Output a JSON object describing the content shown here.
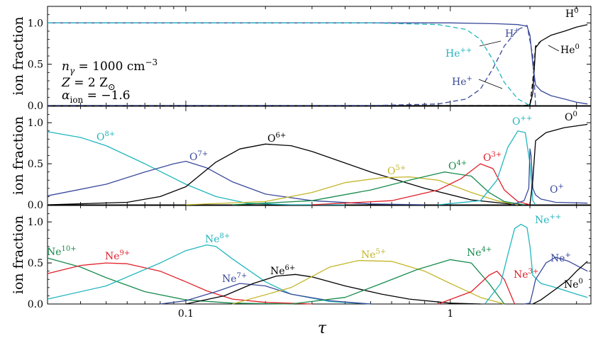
{
  "x_axis_label": "τ",
  "x_tick_labels": [
    "0.1",
    "1"
  ],
  "colors": {
    "navy": "#3a4a9a",
    "cyan": "#22b6bf",
    "black": "#000000",
    "green": "#168a4c",
    "red": "#e0202a",
    "olive": "#c4b62a"
  },
  "annotations": {
    "n_gamma": "n",
    "n_gamma_sub": "γ",
    "n_gamma_val": " = 1000 cm",
    "n_gamma_exp": "−3",
    "Z_lhs": "Z",
    "Z_rhs": " = 2 Z",
    "Z_sub": "⊙",
    "alpha_lhs": "α",
    "alpha_sub": "ion",
    "alpha_rhs": " = −1.6"
  },
  "chart_data": [
    {
      "type": "line",
      "panel": "hydrogen-helium",
      "ylabel": "ion fraction",
      "ylim": [
        0,
        1.2
      ],
      "yticks": [
        0,
        0.5,
        1
      ],
      "ytick_labels": [
        "0.0",
        "0.5",
        "1.0"
      ],
      "xscale": "log",
      "xlim": [
        0.03,
        3.4
      ],
      "series": [
        {
          "name": "H",
          "charge": "0",
          "color": "#000000",
          "dash": "",
          "x": [
            0.03,
            1.9,
            2.0,
            2.05,
            2.1,
            2.2,
            2.4,
            2.7,
            3.0,
            3.3
          ],
          "y": [
            0,
            0,
            0.01,
            0.15,
            0.7,
            0.78,
            0.85,
            0.9,
            0.95,
            0.98
          ]
        },
        {
          "name": "H",
          "charge": "+",
          "color": "#3a4a9a",
          "dash": "",
          "x": [
            0.03,
            1.0,
            1.5,
            1.8,
            1.95,
            2.0,
            2.05,
            2.1,
            2.2,
            2.4,
            2.7,
            3.0,
            3.3
          ],
          "y": [
            1,
            1,
            0.99,
            0.98,
            0.96,
            0.85,
            0.5,
            0.25,
            0.18,
            0.12,
            0.08,
            0.04,
            0.02
          ]
        },
        {
          "name": "He",
          "charge": "0",
          "color": "#000000",
          "dash": "7 4",
          "x": [
            0.03,
            2.0,
            2.05,
            2.1,
            2.2
          ],
          "y": [
            0,
            0,
            0.3,
            0.72,
            0.78
          ]
        },
        {
          "name": "He",
          "charge": "++",
          "color": "#22b6bf",
          "dash": "7 4",
          "x": [
            0.03,
            0.5,
            0.9,
            1.15,
            1.3,
            1.45,
            1.6,
            1.8,
            1.95,
            2.0
          ],
          "y": [
            1,
            1,
            0.98,
            0.92,
            0.8,
            0.55,
            0.28,
            0.08,
            0.02,
            0
          ]
        },
        {
          "name": "He",
          "charge": "+",
          "color": "#3a4a9a",
          "dash": "7 4",
          "x": [
            0.03,
            0.5,
            0.9,
            1.15,
            1.3,
            1.45,
            1.6,
            1.8,
            1.95,
            2.05,
            2.1
          ],
          "y": [
            0,
            0,
            0.02,
            0.08,
            0.2,
            0.45,
            0.72,
            0.92,
            0.97,
            0.6,
            0
          ]
        }
      ]
    },
    {
      "type": "line",
      "panel": "oxygen",
      "ylabel": "ion fraction",
      "ylim": [
        0,
        1.2
      ],
      "yticks": [
        0,
        0.5,
        1
      ],
      "ytick_labels": [
        "0.0",
        "0.5",
        "1.0"
      ],
      "xscale": "log",
      "xlim": [
        0.03,
        3.4
      ],
      "series": [
        {
          "name": "O",
          "charge": "8+",
          "color": "#22b6bf",
          "x": [
            0.03,
            0.04,
            0.05,
            0.07,
            0.1,
            0.13,
            0.17,
            0.25,
            0.4
          ],
          "y": [
            0.89,
            0.82,
            0.72,
            0.5,
            0.25,
            0.1,
            0.02,
            0,
            0
          ]
        },
        {
          "name": "O",
          "charge": "7+",
          "color": "#3a4a9a",
          "x": [
            0.03,
            0.05,
            0.07,
            0.09,
            0.1,
            0.12,
            0.15,
            0.2,
            0.3,
            0.5,
            0.8
          ],
          "y": [
            0.11,
            0.25,
            0.4,
            0.5,
            0.53,
            0.45,
            0.28,
            0.13,
            0.05,
            0.01,
            0
          ]
        },
        {
          "name": "O",
          "charge": "6+",
          "color": "#000000",
          "x": [
            0.03,
            0.06,
            0.08,
            0.1,
            0.13,
            0.16,
            0.2,
            0.25,
            0.3,
            0.5,
            0.8,
            1.2,
            1.8
          ],
          "y": [
            0,
            0.03,
            0.1,
            0.22,
            0.52,
            0.68,
            0.74,
            0.72,
            0.65,
            0.4,
            0.2,
            0.06,
            0
          ]
        },
        {
          "name": "O",
          "charge": "5+",
          "color": "#c4b62a",
          "x": [
            0.1,
            0.2,
            0.3,
            0.4,
            0.55,
            0.7,
            0.9,
            1.2,
            1.5,
            1.8
          ],
          "y": [
            0,
            0.04,
            0.15,
            0.27,
            0.33,
            0.34,
            0.3,
            0.15,
            0.05,
            0
          ]
        },
        {
          "name": "O",
          "charge": "4+",
          "color": "#168a4c",
          "x": [
            0.15,
            0.3,
            0.5,
            0.7,
            0.95,
            1.2,
            1.4,
            1.6,
            1.9
          ],
          "y": [
            0,
            0.05,
            0.18,
            0.3,
            0.4,
            0.35,
            0.15,
            0.04,
            0
          ]
        },
        {
          "name": "O",
          "charge": "3+",
          "color": "#e0202a",
          "x": [
            0.3,
            0.6,
            0.9,
            1.1,
            1.3,
            1.45,
            1.6,
            1.8,
            2.0
          ],
          "y": [
            0,
            0.05,
            0.18,
            0.32,
            0.5,
            0.44,
            0.18,
            0.04,
            0
          ]
        },
        {
          "name": "O",
          "charge": "++",
          "color": "#22b6bf",
          "x": [
            0.9,
            1.3,
            1.5,
            1.65,
            1.8,
            1.92,
            2.0,
            2.05,
            2.1
          ],
          "y": [
            0,
            0.05,
            0.3,
            0.7,
            0.9,
            0.88,
            0.5,
            0.05,
            0
          ]
        },
        {
          "name": "O",
          "charge": "+",
          "color": "#3a4a9a",
          "x": [
            1.7,
            1.9,
            1.98,
            2.0,
            2.02,
            2.05,
            2.1,
            2.2,
            2.5,
            3.3
          ],
          "y": [
            0,
            0.05,
            0.2,
            0.68,
            0.6,
            0.2,
            0.12,
            0.07,
            0.03,
            0.02
          ]
        },
        {
          "name": "O",
          "charge": "0",
          "color": "#000000",
          "x": [
            2.0,
            2.05,
            2.1,
            2.3,
            2.7,
            3.3
          ],
          "y": [
            0,
            0.3,
            0.78,
            0.88,
            0.94,
            0.98
          ]
        }
      ]
    },
    {
      "type": "line",
      "panel": "neon",
      "ylabel": "ion fraction",
      "ylim": [
        0,
        1.2
      ],
      "yticks": [
        0,
        0.5,
        1
      ],
      "ytick_labels": [
        "0.0",
        "0.5",
        "1.0"
      ],
      "xscale": "log",
      "xlim": [
        0.03,
        3.4
      ],
      "series": [
        {
          "name": "Ne",
          "charge": "10+",
          "color": "#168a4c",
          "x": [
            0.03,
            0.04,
            0.05,
            0.07,
            0.1,
            0.15,
            0.25
          ],
          "y": [
            0.56,
            0.45,
            0.32,
            0.15,
            0.05,
            0.01,
            0
          ]
        },
        {
          "name": "Ne",
          "charge": "9+",
          "color": "#e0202a",
          "x": [
            0.03,
            0.04,
            0.05,
            0.06,
            0.08,
            0.1,
            0.12,
            0.15,
            0.2,
            0.3
          ],
          "y": [
            0.37,
            0.47,
            0.5,
            0.49,
            0.4,
            0.27,
            0.16,
            0.06,
            0.02,
            0
          ]
        },
        {
          "name": "Ne",
          "charge": "8+",
          "color": "#22b6bf",
          "x": [
            0.03,
            0.05,
            0.08,
            0.1,
            0.12,
            0.13,
            0.15,
            0.2,
            0.25,
            0.35,
            0.5
          ],
          "y": [
            0.06,
            0.22,
            0.5,
            0.65,
            0.72,
            0.7,
            0.55,
            0.27,
            0.12,
            0.03,
            0
          ]
        },
        {
          "name": "Ne",
          "charge": "7+",
          "color": "#3a4a9a",
          "x": [
            0.08,
            0.1,
            0.13,
            0.16,
            0.2,
            0.25,
            0.35,
            0.5
          ],
          "y": [
            0,
            0.04,
            0.15,
            0.25,
            0.22,
            0.12,
            0.04,
            0
          ]
        },
        {
          "name": "Ne",
          "charge": "6+",
          "color": "#000000",
          "x": [
            0.1,
            0.14,
            0.18,
            0.22,
            0.26,
            0.3,
            0.4,
            0.55,
            0.7,
            1.0,
            1.3
          ],
          "y": [
            0,
            0.1,
            0.25,
            0.34,
            0.36,
            0.33,
            0.22,
            0.12,
            0.06,
            0.01,
            0
          ]
        },
        {
          "name": "Ne",
          "charge": "5+",
          "color": "#c4b62a",
          "x": [
            0.15,
            0.25,
            0.35,
            0.45,
            0.6,
            0.8,
            1.0,
            1.3,
            1.6
          ],
          "y": [
            0,
            0.2,
            0.45,
            0.53,
            0.52,
            0.4,
            0.25,
            0.08,
            0
          ]
        },
        {
          "name": "Ne",
          "charge": "4+",
          "color": "#168a4c",
          "x": [
            0.25,
            0.4,
            0.55,
            0.75,
            1.0,
            1.2,
            1.4,
            1.6
          ],
          "y": [
            0,
            0.08,
            0.25,
            0.42,
            0.54,
            0.5,
            0.25,
            0
          ]
        },
        {
          "name": "Ne",
          "charge": "3+",
          "color": "#e0202a",
          "x": [
            0.9,
            1.2,
            1.4,
            1.5,
            1.6,
            1.75
          ],
          "y": [
            0,
            0.15,
            0.35,
            0.4,
            0.3,
            0
          ]
        },
        {
          "name": "Ne",
          "charge": "++",
          "color": "#22b6bf",
          "x": [
            1.35,
            1.55,
            1.65,
            1.75,
            1.85,
            1.95,
            2.0,
            2.05,
            2.2,
            2.5,
            3.0,
            3.3
          ],
          "y": [
            0,
            0.25,
            0.6,
            0.92,
            0.97,
            0.93,
            0.7,
            0.35,
            0.25,
            0.2,
            0.12,
            0.08
          ]
        },
        {
          "name": "Ne",
          "charge": "+",
          "color": "#3a4a9a",
          "x": [
            1.9,
            2.0,
            2.05,
            2.1,
            2.3,
            2.5,
            2.8,
            3.3
          ],
          "y": [
            0,
            0.01,
            0.15,
            0.3,
            0.5,
            0.57,
            0.52,
            0.4
          ]
        },
        {
          "name": "Ne",
          "charge": "0",
          "color": "#000000",
          "x": [
            2.05,
            2.2,
            2.5,
            2.8,
            3.0,
            3.3
          ],
          "y": [
            0,
            0.05,
            0.18,
            0.3,
            0.4,
            0.52
          ]
        }
      ]
    }
  ],
  "curve_labels": [
    [
      {
        "name": "H",
        "charge": "0",
        "color": "#000000"
      },
      {
        "name": "H",
        "charge": "+",
        "color": "#3a4a9a"
      },
      {
        "name": "He",
        "charge": "++",
        "color": "#22b6bf"
      },
      {
        "name": "He",
        "charge": "+",
        "color": "#3a4a9a"
      },
      {
        "name": "He",
        "charge": "0",
        "color": "#000000"
      }
    ],
    [
      {
        "name": "O",
        "charge": "8+",
        "color": "#22b6bf"
      },
      {
        "name": "O",
        "charge": "7+",
        "color": "#3a4a9a"
      },
      {
        "name": "O",
        "charge": "6+",
        "color": "#000000"
      },
      {
        "name": "O",
        "charge": "5+",
        "color": "#c4b62a"
      },
      {
        "name": "O",
        "charge": "4+",
        "color": "#168a4c"
      },
      {
        "name": "O",
        "charge": "3+",
        "color": "#e0202a"
      },
      {
        "name": "O",
        "charge": "++",
        "color": "#22b6bf"
      },
      {
        "name": "O",
        "charge": "0",
        "color": "#000000"
      },
      {
        "name": "O",
        "charge": "+",
        "color": "#3a4a9a"
      }
    ],
    [
      {
        "name": "Ne",
        "charge": "10+",
        "color": "#168a4c"
      },
      {
        "name": "Ne",
        "charge": "9+",
        "color": "#e0202a"
      },
      {
        "name": "Ne",
        "charge": "8+",
        "color": "#22b6bf"
      },
      {
        "name": "Ne",
        "charge": "7+",
        "color": "#3a4a9a"
      },
      {
        "name": "Ne",
        "charge": "6+",
        "color": "#000000"
      },
      {
        "name": "Ne",
        "charge": "5+",
        "color": "#c4b62a"
      },
      {
        "name": "Ne",
        "charge": "4+",
        "color": "#168a4c"
      },
      {
        "name": "Ne",
        "charge": "3+",
        "color": "#e0202a"
      },
      {
        "name": "Ne",
        "charge": "++",
        "color": "#22b6bf"
      },
      {
        "name": "Ne",
        "charge": "+",
        "color": "#3a4a9a"
      },
      {
        "name": "Ne",
        "charge": "0",
        "color": "#000000"
      }
    ]
  ]
}
